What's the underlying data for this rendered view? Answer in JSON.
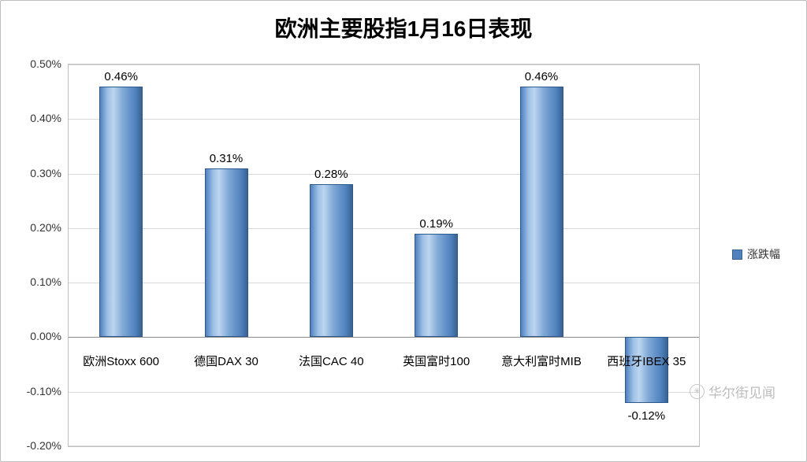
{
  "title": "欧洲主要股指1月16日表现",
  "legend": {
    "label": "涨跌幅",
    "color": "#4F81BD"
  },
  "watermark": {
    "text": "华尔街见闻",
    "icon": "✳"
  },
  "chart_data": {
    "type": "bar",
    "title": "欧洲主要股指1月16日表现",
    "categories": [
      "欧洲Stoxx 600",
      "德国DAX 30",
      "法国CAC 40",
      "英国富时100",
      "意大利富时MIB",
      "西班牙IBEX 35"
    ],
    "values": [
      0.46,
      0.31,
      0.28,
      0.19,
      0.46,
      -0.12
    ],
    "data_labels": [
      "0.46%",
      "0.31%",
      "0.28%",
      "0.19%",
      "0.46%",
      "-0.12%"
    ],
    "series_name": "涨跌幅",
    "bar_color": "#4F81BD",
    "xlabel": "",
    "ylabel": "",
    "ylim": [
      -0.2,
      0.5
    ],
    "ytick_step": 0.1,
    "yticks": [
      "0.50%",
      "0.40%",
      "0.30%",
      "0.20%",
      "0.10%",
      "0.00%",
      "-0.10%",
      "-0.20%"
    ],
    "grid": true,
    "legend_position": "right"
  }
}
